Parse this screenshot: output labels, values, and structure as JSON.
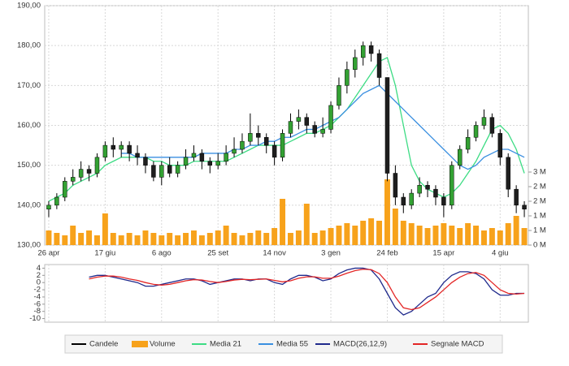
{
  "chart_data": [
    {
      "type": "candlestick",
      "categories": [
        "26 apr",
        null,
        null,
        null,
        null,
        null,
        null,
        "17 giu",
        null,
        null,
        null,
        null,
        null,
        null,
        "6 ago",
        null,
        null,
        null,
        null,
        null,
        null,
        "25 set",
        null,
        null,
        null,
        null,
        null,
        null,
        "14 nov",
        null,
        null,
        null,
        null,
        null,
        null,
        "3 gen",
        null,
        null,
        null,
        null,
        null,
        null,
        "24 feb",
        null,
        null,
        null,
        null,
        null,
        null,
        "15 apr",
        null,
        null,
        null,
        null,
        null,
        null,
        "4 giu",
        null,
        null,
        null
      ],
      "ylim": [
        130,
        190
      ],
      "yticks": [
        {
          "value": 130,
          "label": "130,00"
        },
        {
          "value": 140,
          "label": "140,00"
        },
        {
          "value": 150,
          "label": "150,00"
        },
        {
          "value": 160,
          "label": "160,00"
        },
        {
          "value": 170,
          "label": "170,00"
        },
        {
          "value": 180,
          "label": "180,00"
        },
        {
          "value": 190,
          "label": "190,00"
        }
      ],
      "y2lim": [
        0,
        3
      ],
      "y2ticks": [
        {
          "value": 0,
          "label": "0 M"
        },
        {
          "value": 0.6,
          "label": "1 M"
        },
        {
          "value": 1.2,
          "label": "1 M"
        },
        {
          "value": 1.8,
          "label": "2 M"
        },
        {
          "value": 2.4,
          "label": "2 M"
        },
        {
          "value": 3,
          "label": "3 M"
        }
      ],
      "grid": true,
      "series": [
        {
          "name": "Candele",
          "type": "candlestick",
          "color": "#000000",
          "up_color": "#33a133",
          "down_color": "#1e1e1e",
          "open": [
            139,
            140,
            142,
            146,
            147,
            149,
            148,
            152,
            155,
            154,
            155,
            153,
            152,
            150,
            147,
            150,
            148,
            150,
            152,
            153,
            151,
            150,
            151,
            153,
            154,
            156,
            158,
            157,
            155,
            152,
            158,
            161,
            162,
            160,
            158,
            159,
            165,
            170,
            174,
            177,
            180,
            178,
            172,
            148,
            142,
            140,
            143,
            145,
            144,
            142,
            140,
            150,
            154,
            157,
            160,
            162,
            158,
            152,
            144,
            140
          ],
          "high": [
            141,
            143,
            147,
            149,
            151,
            150,
            153,
            156,
            157,
            156,
            156,
            155,
            153,
            151,
            151,
            152,
            151,
            154,
            155,
            154,
            152,
            153,
            155,
            157,
            158,
            163,
            160,
            158,
            156,
            159,
            163,
            164,
            163,
            161,
            162,
            166,
            172,
            176,
            179,
            181,
            181,
            179,
            172,
            150,
            143,
            144,
            147,
            146,
            145,
            143,
            151,
            155,
            159,
            161,
            164,
            163,
            159,
            153,
            145,
            141
          ],
          "low": [
            137,
            139,
            141,
            145,
            146,
            146,
            147,
            151,
            152,
            152,
            151,
            150,
            148,
            146,
            145,
            147,
            147,
            149,
            151,
            149,
            148,
            149,
            150,
            152,
            153,
            155,
            155,
            153,
            150,
            151,
            157,
            159,
            158,
            157,
            157,
            158,
            164,
            168,
            172,
            175,
            176,
            170,
            146,
            140,
            138,
            139,
            142,
            142,
            140,
            137,
            139,
            149,
            153,
            156,
            159,
            157,
            150,
            142,
            138,
            137
          ],
          "close": [
            140,
            142,
            146,
            147,
            149,
            148,
            152,
            155,
            154,
            155,
            153,
            152,
            150,
            147,
            150,
            148,
            150,
            152,
            153,
            151,
            150,
            151,
            153,
            154,
            156,
            158,
            157,
            155,
            152,
            158,
            161,
            162,
            160,
            158,
            159,
            165,
            170,
            174,
            177,
            180,
            178,
            172,
            148,
            142,
            140,
            143,
            145,
            144,
            142,
            140,
            150,
            154,
            157,
            160,
            162,
            158,
            152,
            144,
            140,
            139
          ]
        },
        {
          "name": "Volume",
          "type": "bar",
          "axis": "y2",
          "color": "#f7a21b",
          "values": [
            0.6,
            0.5,
            0.4,
            0.8,
            0.5,
            0.6,
            0.4,
            1.3,
            0.5,
            0.4,
            0.5,
            0.4,
            0.6,
            0.5,
            0.4,
            0.5,
            0.4,
            0.5,
            0.6,
            0.4,
            0.5,
            0.6,
            0.8,
            0.5,
            0.4,
            0.5,
            0.6,
            0.5,
            0.7,
            1.9,
            0.5,
            0.6,
            1.7,
            0.5,
            0.6,
            0.7,
            0.8,
            0.9,
            0.8,
            1.0,
            1.1,
            1.0,
            2.7,
            1.5,
            1.0,
            0.9,
            0.8,
            0.7,
            0.8,
            0.9,
            0.8,
            0.7,
            0.9,
            0.8,
            0.6,
            0.7,
            0.6,
            0.9,
            1.2,
            0.7
          ]
        },
        {
          "name": "Media 21",
          "type": "line",
          "color": "#3ddc84",
          "values": [
            141,
            142,
            143,
            145,
            146,
            147,
            148,
            150,
            151,
            152,
            152,
            152,
            152,
            151,
            151,
            150,
            150,
            150,
            151,
            151,
            151,
            151,
            151,
            152,
            153,
            154,
            155,
            155,
            155,
            155,
            156,
            157,
            158,
            158,
            159,
            160,
            162,
            164,
            167,
            170,
            173,
            176,
            177,
            170,
            160,
            150,
            146,
            144,
            143,
            142,
            143,
            145,
            148,
            151,
            155,
            159,
            160,
            158,
            154,
            148
          ]
        },
        {
          "name": "Media 55",
          "type": "line",
          "color": "#3a8fe0",
          "values": [
            null,
            null,
            null,
            null,
            null,
            null,
            null,
            null,
            null,
            153,
            153,
            152,
            152,
            152,
            152,
            152,
            152,
            152,
            152,
            153,
            153,
            153,
            153,
            154,
            154,
            155,
            155,
            156,
            156,
            157,
            157,
            158,
            159,
            159,
            160,
            161,
            162,
            164,
            166,
            168,
            169,
            170,
            168,
            166,
            164,
            162,
            160,
            158,
            156,
            154,
            152,
            150,
            149,
            150,
            152,
            153,
            154,
            154,
            153,
            152
          ]
        }
      ]
    },
    {
      "type": "line",
      "ylim": [
        -11,
        5
      ],
      "yticks": [
        4,
        2,
        0,
        -2,
        -4,
        -6,
        -8,
        -10
      ],
      "series": [
        {
          "name": "MACD(26,12,9)",
          "color": "#1f2a8c",
          "values": [
            null,
            null,
            null,
            null,
            null,
            1.5,
            2,
            2,
            1.5,
            1,
            0.5,
            0,
            -1,
            -1,
            -0.5,
            0,
            0.5,
            1,
            1,
            0.5,
            -0.5,
            0,
            0.5,
            1,
            1,
            0.5,
            1,
            1,
            0,
            -0.5,
            1,
            2,
            2,
            1.5,
            0.5,
            1,
            2.5,
            3.5,
            4,
            4,
            3.5,
            1,
            -3,
            -7,
            -9,
            -8,
            -6,
            -4,
            -3,
            0,
            2,
            3,
            3,
            2.5,
            1,
            -2,
            -3.5,
            -3.5,
            -3,
            -3
          ]
        },
        {
          "name": "Segnale MACD",
          "color": "#e32626",
          "values": [
            null,
            null,
            null,
            null,
            null,
            1,
            1.5,
            1.8,
            1.8,
            1.5,
            1,
            0.6,
            0,
            -0.5,
            -0.7,
            -0.5,
            0,
            0.5,
            0.8,
            0.7,
            0.3,
            0,
            0.3,
            0.7,
            0.9,
            0.8,
            0.9,
            1,
            0.6,
            0.2,
            0.5,
            1.2,
            1.6,
            1.6,
            1.2,
            1.2,
            1.8,
            2.6,
            3.3,
            3.7,
            3.6,
            2.5,
            0,
            -4,
            -7,
            -7.5,
            -7,
            -5.5,
            -4,
            -2,
            0,
            1.5,
            2.5,
            2.8,
            2,
            0,
            -2,
            -3,
            -3.2,
            -3
          ]
        }
      ]
    }
  ]
}
